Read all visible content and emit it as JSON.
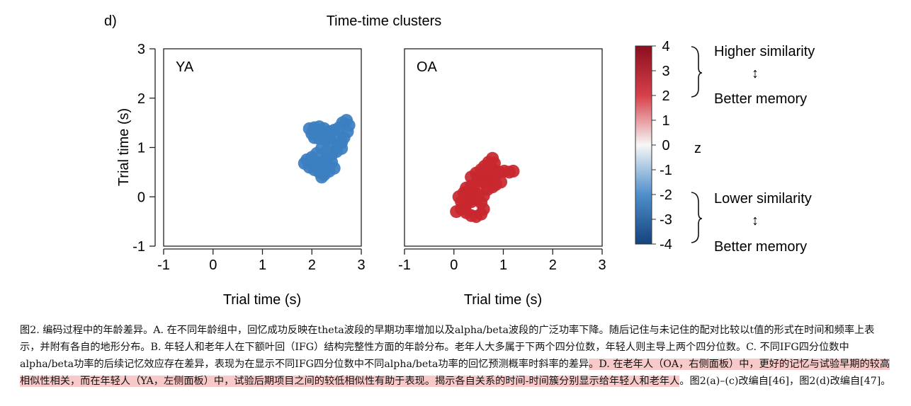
{
  "panel_label": "d)",
  "title": "Time-time clusters",
  "chart_data": [
    {
      "type": "heatmap",
      "panel": "YA",
      "xlabel": "Trial time (s)",
      "ylabel": "Trial time (s)",
      "xlim": [
        -1,
        3
      ],
      "ylim": [
        -1,
        3
      ],
      "xticks": [
        -1,
        0,
        1,
        2,
        3
      ],
      "yticks": [
        -1,
        0,
        1,
        2,
        3
      ],
      "cluster_z": -2.5,
      "cluster_color": "#3b7fc0",
      "cluster_points": [
        [
          1.95,
          1.38
        ],
        [
          2.05,
          1.4
        ],
        [
          2.15,
          1.42
        ],
        [
          2.25,
          1.38
        ],
        [
          2.35,
          1.32
        ],
        [
          2.45,
          1.35
        ],
        [
          2.55,
          1.4
        ],
        [
          2.62,
          1.5
        ],
        [
          2.7,
          1.55
        ],
        [
          2.75,
          1.45
        ],
        [
          2.72,
          1.32
        ],
        [
          2.65,
          1.2
        ],
        [
          2.6,
          1.1
        ],
        [
          2.52,
          1.05
        ],
        [
          2.4,
          1.1
        ],
        [
          2.28,
          1.15
        ],
        [
          2.15,
          1.18
        ],
        [
          2.05,
          1.2
        ],
        [
          2.0,
          1.28
        ],
        [
          2.2,
          1.28
        ],
        [
          2.35,
          1.22
        ],
        [
          2.5,
          1.2
        ],
        [
          2.6,
          0.98
        ],
        [
          2.5,
          0.92
        ],
        [
          2.4,
          0.85
        ],
        [
          2.3,
          0.92
        ],
        [
          2.2,
          0.98
        ],
        [
          2.1,
          0.88
        ],
        [
          2.0,
          0.8
        ],
        [
          1.9,
          0.75
        ],
        [
          1.85,
          0.68
        ],
        [
          1.95,
          0.6
        ],
        [
          2.05,
          0.55
        ],
        [
          2.15,
          0.5
        ],
        [
          2.25,
          0.45
        ],
        [
          2.35,
          0.52
        ],
        [
          2.45,
          0.58
        ],
        [
          2.4,
          0.7
        ],
        [
          2.3,
          0.75
        ],
        [
          2.2,
          0.7
        ],
        [
          2.1,
          0.65
        ],
        [
          2.2,
          0.4
        ],
        [
          2.28,
          0.62
        ]
      ]
    },
    {
      "type": "heatmap",
      "panel": "OA",
      "xlabel": "Trial time (s)",
      "xlim": [
        -1,
        3
      ],
      "ylim": [
        -1,
        3
      ],
      "xticks": [
        -1,
        0,
        1,
        2,
        3
      ],
      "cluster_z": 3.0,
      "cluster_color": "#c9272f",
      "cluster_points": [
        [
          0.05,
          -0.3
        ],
        [
          0.15,
          -0.25
        ],
        [
          0.25,
          -0.32
        ],
        [
          0.35,
          -0.38
        ],
        [
          0.45,
          -0.4
        ],
        [
          0.55,
          -0.35
        ],
        [
          0.6,
          -0.25
        ],
        [
          0.55,
          -0.12
        ],
        [
          0.45,
          -0.05
        ],
        [
          0.35,
          -0.1
        ],
        [
          0.25,
          -0.15
        ],
        [
          0.15,
          -0.1
        ],
        [
          0.1,
          0.0
        ],
        [
          0.2,
          0.08
        ],
        [
          0.3,
          0.12
        ],
        [
          0.4,
          0.1
        ],
        [
          0.5,
          0.05
        ],
        [
          0.6,
          0.02
        ],
        [
          0.68,
          0.15
        ],
        [
          0.62,
          0.28
        ],
        [
          0.55,
          0.32
        ],
        [
          0.45,
          0.28
        ],
        [
          0.35,
          0.22
        ],
        [
          0.25,
          0.18
        ],
        [
          0.35,
          0.4
        ],
        [
          0.45,
          0.48
        ],
        [
          0.55,
          0.55
        ],
        [
          0.62,
          0.62
        ],
        [
          0.7,
          0.7
        ],
        [
          0.78,
          0.78
        ],
        [
          0.82,
          0.68
        ],
        [
          0.8,
          0.55
        ],
        [
          0.72,
          0.45
        ],
        [
          0.65,
          0.42
        ],
        [
          0.72,
          0.35
        ],
        [
          0.82,
          0.4
        ],
        [
          0.92,
          0.5
        ],
        [
          1.02,
          0.52
        ],
        [
          1.12,
          0.5
        ],
        [
          1.2,
          0.52
        ],
        [
          0.95,
          0.3
        ],
        [
          0.85,
          0.25
        ],
        [
          0.78,
          0.2
        ],
        [
          0.5,
          0.38
        ],
        [
          0.4,
          0.0
        ],
        [
          0.3,
          -0.02
        ],
        [
          0.2,
          -0.2
        ]
      ]
    },
    {
      "type": "colorbar",
      "label": "z",
      "range": [
        -4,
        4
      ],
      "ticks": [
        4,
        3,
        2,
        1,
        0,
        -1,
        -2,
        -3,
        -4
      ],
      "tick_labels": [
        "4",
        "3",
        "2",
        "1",
        "0",
        "-1",
        "-2",
        "-3",
        "-4"
      ],
      "colors": {
        "high": "#8b0f1f",
        "mid": "#f7f7f7",
        "low": "#14437d"
      }
    }
  ],
  "legend": {
    "upper": {
      "line1": "Higher similarity",
      "arrow": "↕",
      "line2": "Better memory"
    },
    "lower": {
      "line1": "Lower similarity",
      "arrow": "↕",
      "line2": "Better memory"
    }
  },
  "caption": {
    "part1": "图2. 编码过程中的年龄差异。A. 在不同年龄组中，回忆成功反映在theta波段的早期功率增加以及alpha/beta波段的广泛功率下降。随后记住与未记住的配对比较以t值的形式在时间和频率上表示，并附有各自的地形分布。B. 年轻人和老年人在下额叶回（IFG）结构完整性方面的年龄分布。老年人大多属于下两个四分位数，年轻人则主导上两个四分位数。C. 不同IFG四分位数中alpha/beta功率的后续记忆效应存在差异，表现为在显示不同IFG四分位数中不同alpha/beta功率的回忆预测概率时斜率的差异",
    "highlight": "。D. 在老年人（OA，右侧面板）中，更好的记忆与试验早期的较高相似性相关，而在年轻人（YA，左侧面板）中，试验后期项目之间的较低相似性有助于表现。揭示各自关系的时间-时间簇分别显示给年轻人和老年人",
    "part2": "。图2(a)–(c)改编自[46]，图2(d)改编自[47]。"
  }
}
